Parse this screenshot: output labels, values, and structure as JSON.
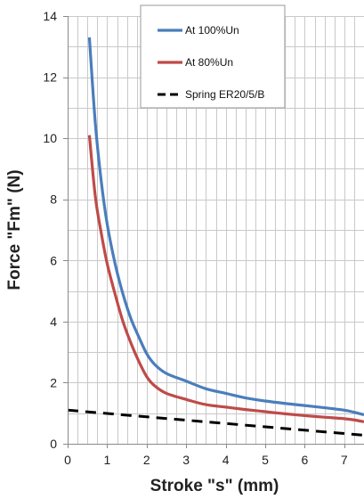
{
  "chart_data": {
    "type": "line",
    "xlabel": "Stroke \"s\" (mm)",
    "ylabel": "Force \"Fm\" (N)",
    "xlim": [
      0,
      7.5
    ],
    "ylim": [
      0,
      14
    ],
    "x_ticks": [
      0,
      1,
      2,
      3,
      4,
      5,
      6,
      7
    ],
    "y_ticks": [
      0,
      2,
      4,
      6,
      8,
      10,
      12,
      14
    ],
    "x_minor_grid_step": 0.25,
    "y_grid_step": 1,
    "grid": true,
    "legend_position": "top-center",
    "series": [
      {
        "name": "At 100%Un",
        "color": "#4a7ebb",
        "style": "solid",
        "x": [
          0.55,
          0.7,
          0.85,
          1.0,
          1.2,
          1.4,
          1.6,
          1.8,
          2.0,
          2.2,
          2.5,
          3.0,
          3.5,
          4.0,
          4.5,
          5.0,
          5.5,
          6.0,
          6.5,
          7.0,
          7.25,
          7.5
        ],
        "y": [
          13.3,
          10.5,
          8.6,
          7.2,
          5.9,
          4.9,
          4.1,
          3.5,
          2.95,
          2.6,
          2.3,
          2.05,
          1.8,
          1.65,
          1.5,
          1.4,
          1.32,
          1.25,
          1.18,
          1.1,
          1.03,
          0.95
        ]
      },
      {
        "name": "At 80%Un",
        "color": "#be4b48",
        "style": "solid",
        "x": [
          0.55,
          0.7,
          0.85,
          1.0,
          1.2,
          1.4,
          1.6,
          1.8,
          2.0,
          2.2,
          2.5,
          3.0,
          3.5,
          4.0,
          4.5,
          5.0,
          5.5,
          6.0,
          6.5,
          7.0,
          7.25,
          7.5
        ],
        "y": [
          10.1,
          8.1,
          6.9,
          5.9,
          4.9,
          4.0,
          3.3,
          2.7,
          2.2,
          1.9,
          1.65,
          1.45,
          1.28,
          1.2,
          1.12,
          1.05,
          0.98,
          0.92,
          0.87,
          0.82,
          0.78,
          0.72
        ]
      },
      {
        "name": "Spring ER20/5/B",
        "color": "#000000",
        "style": "dashed",
        "x": [
          0,
          7.5
        ],
        "y": [
          1.1,
          0.28
        ]
      }
    ]
  }
}
